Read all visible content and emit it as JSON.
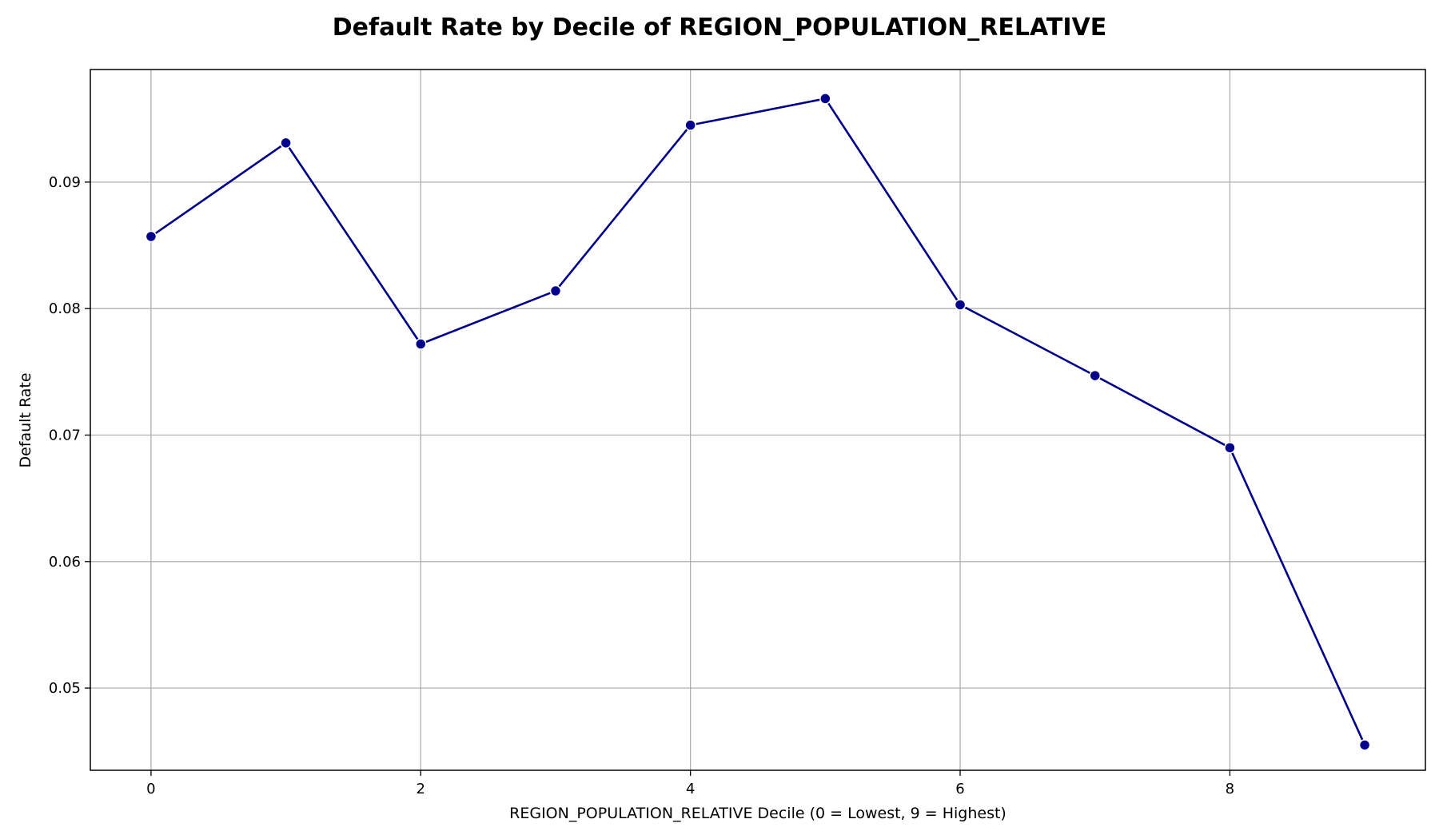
{
  "chart_data": {
    "type": "line",
    "title": "Default Rate by Decile of REGION_POPULATION_RELATIVE",
    "xlabel": "REGION_POPULATION_RELATIVE Decile (0 = Lowest, 9 = Highest)",
    "ylabel": "Default Rate",
    "x": [
      0,
      1,
      2,
      3,
      4,
      5,
      6,
      7,
      8,
      9
    ],
    "series": [
      {
        "values": [
          0.0857,
          0.0931,
          0.0772,
          0.0814,
          0.0945,
          0.0966,
          0.0803,
          0.0747,
          0.069,
          0.0455
        ]
      }
    ],
    "xticks": [
      "0",
      "2",
      "4",
      "6",
      "8"
    ],
    "yticks": [
      "0.05",
      "0.06",
      "0.07",
      "0.08",
      "0.09"
    ],
    "xlim": [
      -0.45,
      9.45
    ],
    "ylim": [
      0.0435,
      0.0989
    ],
    "grid": true,
    "line_color": "#00008b",
    "marker_color": "#00008b",
    "grid_color": "#b0b0b0"
  }
}
